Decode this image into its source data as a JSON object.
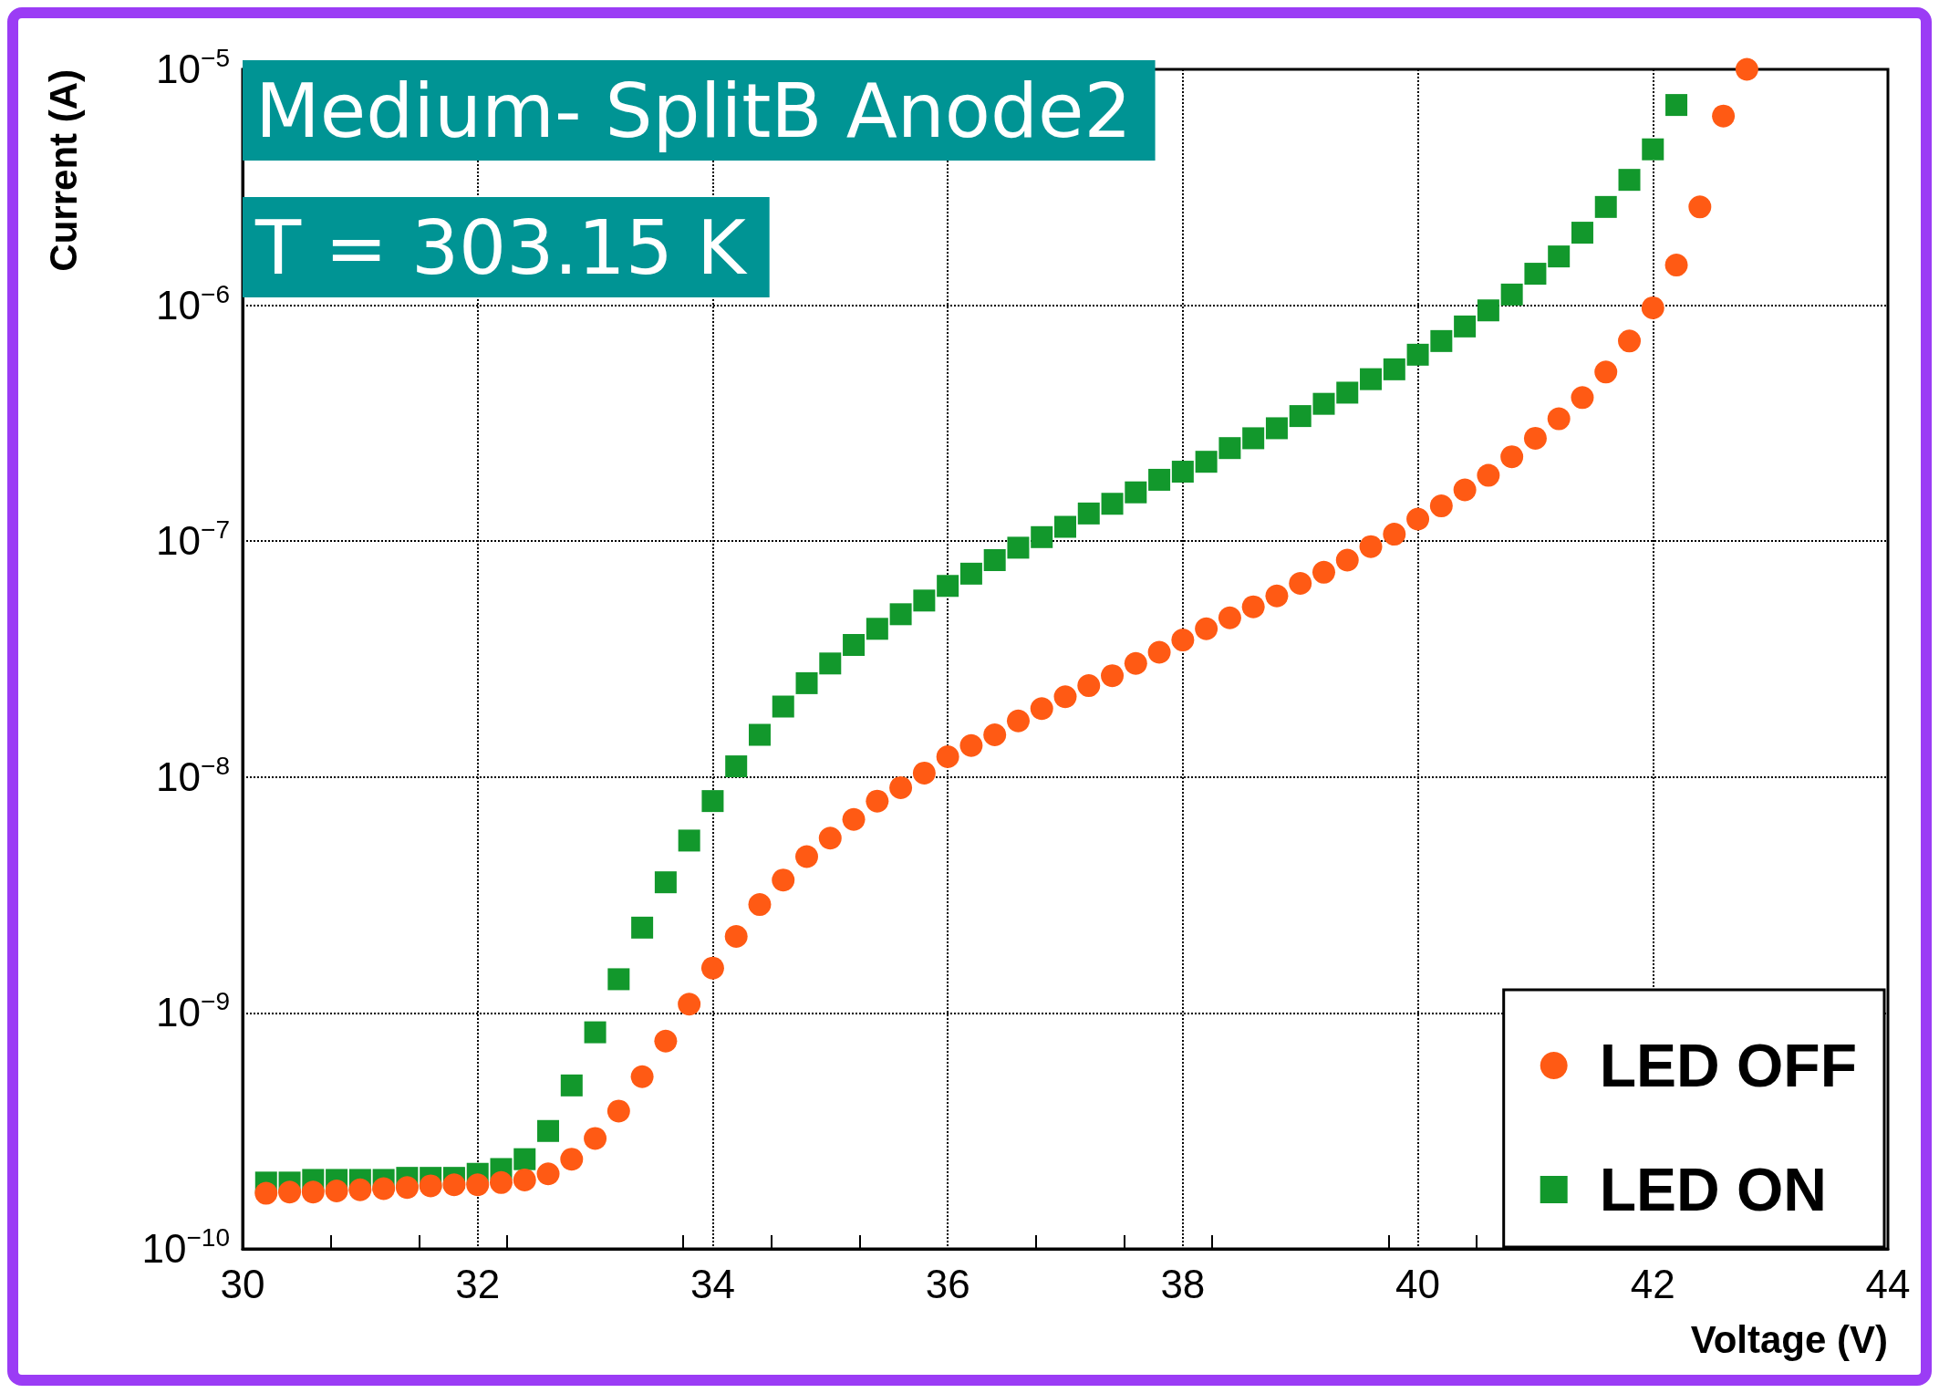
{
  "chart_data": {
    "type": "scatter",
    "title": "Medium- SplitB Anode2",
    "subtitle": "T = 303.15 K",
    "xlabel": "Voltage (V)",
    "ylabel": "Current (A)",
    "log": "y",
    "grid": true,
    "legend": "bottom right",
    "xlim": [
      30,
      44
    ],
    "xticks": [
      30,
      32,
      34,
      36,
      38,
      40,
      42,
      44
    ],
    "ylim": [
      1e-10,
      1e-05
    ],
    "yticks": [
      {
        "value": 1e-10,
        "label": "10$^{−10}$"
      },
      {
        "value": 1e-09,
        "label": "10$^{−9}$"
      },
      {
        "value": 1e-08,
        "label": "10$^{−8}$"
      },
      {
        "value": 1e-07,
        "label": "10$^{−7}$"
      },
      {
        "value": 1e-06,
        "label": "10$^{−6}$"
      },
      {
        "value": 1e-05,
        "label": "10$^{−5}$"
      }
    ],
    "series": [
      {
        "name": "LED OFF",
        "color": "#ff5a14",
        "marker": "circle",
        "x": [
          30.2,
          30.4,
          30.6,
          30.8,
          31.0,
          31.2,
          31.4,
          31.6,
          31.8,
          32.0,
          32.2,
          32.4,
          32.6,
          32.8,
          33.0,
          33.2,
          33.4,
          33.6,
          33.8,
          34.0,
          34.2,
          34.4,
          34.6,
          34.8,
          35.0,
          35.2,
          35.4,
          35.6,
          35.8,
          36.0,
          36.2,
          36.4,
          36.6,
          36.8,
          37.0,
          37.2,
          37.4,
          37.6,
          37.8,
          38.0,
          38.2,
          38.4,
          38.6,
          38.8,
          39.0,
          39.2,
          39.4,
          39.6,
          39.8,
          40.0,
          40.2,
          40.4,
          40.6,
          40.8,
          41.0,
          41.2,
          41.4,
          41.6,
          41.8,
          42.0,
          42.2,
          42.4,
          42.6,
          42.8
        ],
        "values": [
          1.72e-10,
          1.74e-10,
          1.74e-10,
          1.76e-10,
          1.78e-10,
          1.8e-10,
          1.82e-10,
          1.85e-10,
          1.87e-10,
          1.87e-10,
          1.91e-10,
          1.96e-10,
          2.08e-10,
          2.4e-10,
          2.94e-10,
          3.84e-10,
          5.37e-10,
          7.6e-10,
          1.09e-09,
          1.55e-09,
          2.11e-09,
          2.88e-09,
          3.66e-09,
          4.6e-09,
          5.51e-09,
          6.61e-09,
          7.91e-09,
          9.02e-09,
          1.04e-08,
          1.22e-08,
          1.36e-08,
          1.51e-08,
          1.73e-08,
          1.95e-08,
          2.19e-08,
          2.44e-08,
          2.69e-08,
          3.03e-08,
          3.38e-08,
          3.81e-08,
          4.25e-08,
          4.73e-08,
          5.27e-08,
          5.86e-08,
          6.62e-08,
          7.38e-08,
          8.31e-08,
          9.48e-08,
          1.07e-07,
          1.24e-07,
          1.41e-07,
          1.65e-07,
          1.9e-07,
          2.28e-07,
          2.73e-07,
          3.3e-07,
          4.06e-07,
          5.21e-07,
          7.05e-07,
          9.75e-07,
          1.48e-06,
          2.61e-06,
          6.34e-06,
          1e-05
        ]
      },
      {
        "name": "LED ON",
        "color": "#12982c",
        "marker": "square",
        "x": [
          30.2,
          30.4,
          30.6,
          30.8,
          31.0,
          31.2,
          31.4,
          31.6,
          31.8,
          32.0,
          32.2,
          32.4,
          32.6,
          32.8,
          33.0,
          33.2,
          33.4,
          33.6,
          33.8,
          34.0,
          34.2,
          34.4,
          34.6,
          34.8,
          35.0,
          35.2,
          35.4,
          35.6,
          35.8,
          36.0,
          36.2,
          36.4,
          36.6,
          36.8,
          37.0,
          37.2,
          37.4,
          37.6,
          37.8,
          38.0,
          38.2,
          38.4,
          38.6,
          38.8,
          39.0,
          39.2,
          39.4,
          39.6,
          39.8,
          40.0,
          40.2,
          40.4,
          40.6,
          40.8,
          41.0,
          41.2,
          41.4,
          41.6,
          41.8,
          42.0,
          42.2
        ],
        "values": [
          1.91e-10,
          1.91e-10,
          1.96e-10,
          1.96e-10,
          1.96e-10,
          1.96e-10,
          2e-10,
          2e-10,
          2e-10,
          2.08e-10,
          2.18e-10,
          2.4e-10,
          3.16e-10,
          4.93e-10,
          8.28e-10,
          1.39e-09,
          2.3e-09,
          3.58e-09,
          5.38e-09,
          7.91e-09,
          1.11e-08,
          1.51e-08,
          1.99e-08,
          2.5e-08,
          3.03e-08,
          3.63e-08,
          4.25e-08,
          4.9e-08,
          5.6e-08,
          6.46e-08,
          7.28e-08,
          8.31e-08,
          9.38e-08,
          1.04e-07,
          1.15e-07,
          1.31e-07,
          1.44e-07,
          1.61e-07,
          1.82e-07,
          1.97e-07,
          2.17e-07,
          2.48e-07,
          2.73e-07,
          3.01e-07,
          3.39e-07,
          3.82e-07,
          4.26e-07,
          4.86e-07,
          5.35e-07,
          6.17e-07,
          7.05e-07,
          8.13e-07,
          9.51e-07,
          1.11e-06,
          1.36e-06,
          1.61e-06,
          2.03e-06,
          2.61e-06,
          3.4e-06,
          4.58e-06,
          7.06e-06
        ]
      }
    ]
  }
}
